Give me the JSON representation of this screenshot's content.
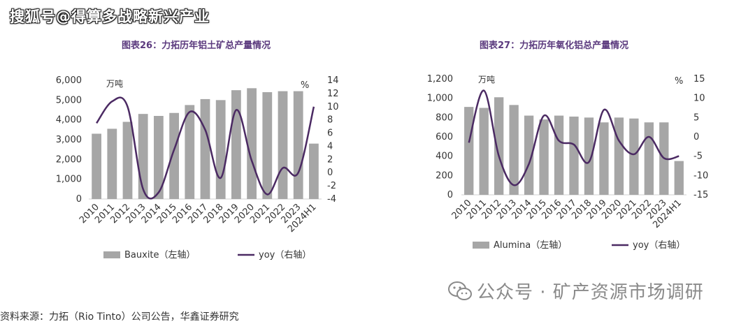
{
  "watermark_top": "搜狐号@得算多战略新兴产业",
  "watermark_bottom": "公众号 · 矿产资源市场调研",
  "source_note": "资料来源：力拓（Rio Tinto）公司公告，华鑫证券研究",
  "colors": {
    "bar": "#a6a6a6",
    "line": "#4b2a63",
    "title": "#5b3a7e",
    "axis": "#d0d0d0",
    "text": "#333333"
  },
  "chart_data": [
    {
      "type": "bar",
      "title": "图表26：力拓历年铝土矿总产量情况",
      "left_unit": "万吨",
      "right_unit": "%",
      "categories": [
        "2010",
        "2011",
        "2012",
        "2013",
        "2014",
        "2015",
        "2016",
        "2017",
        "2018",
        "2019",
        "2020",
        "2021",
        "2022",
        "2023",
        "2024H1"
      ],
      "series": [
        {
          "name": "Bauxite（左轴）",
          "axis": "left",
          "type": "bar",
          "values": [
            3300,
            3550,
            3900,
            4300,
            4200,
            4350,
            4750,
            5050,
            5000,
            5500,
            5600,
            5400,
            5450,
            5450,
            2800
          ]
        },
        {
          "name": "yoy（右轴）",
          "axis": "right",
          "type": "line",
          "values": [
            7.5,
            10.8,
            10.0,
            -2.5,
            -3.0,
            3.5,
            9.2,
            6.5,
            -0.8,
            9.5,
            1.8,
            -3.3,
            0.7,
            0.0,
            10.0
          ]
        }
      ],
      "left_ylim": [
        0,
        6000
      ],
      "left_ticks": [
        0,
        1000,
        2000,
        3000,
        4000,
        5000,
        6000
      ],
      "left_tick_labels": [
        "0",
        "1,000",
        "2,000",
        "3,000",
        "4,000",
        "5,000",
        "6,000"
      ],
      "right_ylim": [
        -4,
        14
      ],
      "right_ticks": [
        -4,
        -2,
        0,
        2,
        4,
        6,
        8,
        10,
        12,
        14
      ],
      "right_tick_labels": [
        "-4",
        "-2",
        "0",
        "2",
        "4",
        "6",
        "8",
        "10",
        "12",
        "14"
      ]
    },
    {
      "type": "bar",
      "title": "图表27：力拓历年氧化铝总产量情况",
      "left_unit": "万吨",
      "right_unit": "%",
      "categories": [
        "2010",
        "2011",
        "2012",
        "2013",
        "2014",
        "2015",
        "2016",
        "2017",
        "2018",
        "2019",
        "2020",
        "2021",
        "2022",
        "2023",
        "2024H1"
      ],
      "series": [
        {
          "name": "Alumina（左轴）",
          "axis": "left",
          "type": "bar",
          "values": [
            910,
            900,
            1010,
            930,
            820,
            780,
            820,
            810,
            800,
            750,
            800,
            790,
            750,
            750,
            350
          ]
        },
        {
          "name": "yoy（右轴）",
          "axis": "right",
          "type": "line",
          "values": [
            -1.5,
            12.0,
            -5.0,
            -12.5,
            -7.0,
            5.5,
            -1.0,
            -2.0,
            -6.5,
            7.0,
            -1.0,
            -4.5,
            0.0,
            -5.5,
            -5.0
          ]
        }
      ],
      "left_ylim": [
        0,
        1200
      ],
      "left_ticks": [
        0,
        200,
        400,
        600,
        800,
        1000,
        1200
      ],
      "left_tick_labels": [
        "0",
        "200",
        "400",
        "600",
        "800",
        "1,000",
        "1,200"
      ],
      "right_ylim": [
        -15,
        15
      ],
      "right_ticks": [
        -15,
        -10,
        -5,
        0,
        5,
        10,
        15
      ],
      "right_tick_labels": [
        "-15",
        "-10",
        "-5",
        "0",
        "5",
        "10",
        "15"
      ]
    }
  ]
}
